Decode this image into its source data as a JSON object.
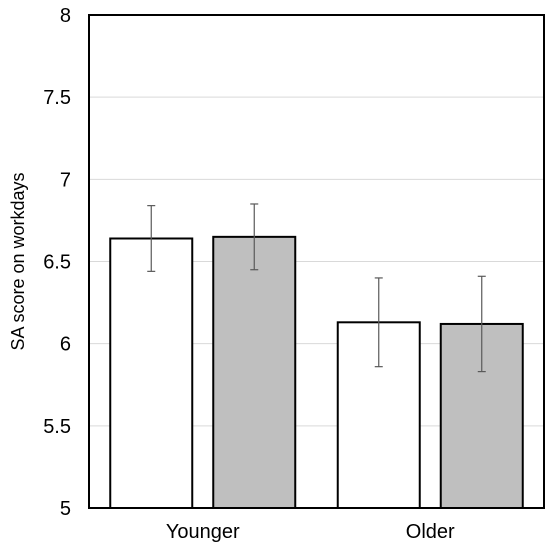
{
  "chart_data": {
    "type": "bar",
    "title": "",
    "xlabel": "",
    "ylabel": "SA score on workdays",
    "categories": [
      "Younger",
      "Older"
    ],
    "ylim": [
      5,
      8
    ],
    "yticks": [
      "5",
      "5.5",
      "6",
      "6.5",
      "7",
      "7.5",
      "8"
    ],
    "grid": true,
    "legend": "none",
    "series": [
      {
        "color": "#ffffff",
        "values": [
          6.64,
          6.13
        ],
        "error": [
          0.2,
          0.27
        ]
      },
      {
        "color": "#bfbfbf",
        "values": [
          6.65,
          6.12
        ],
        "error": [
          0.2,
          0.29
        ]
      }
    ]
  }
}
